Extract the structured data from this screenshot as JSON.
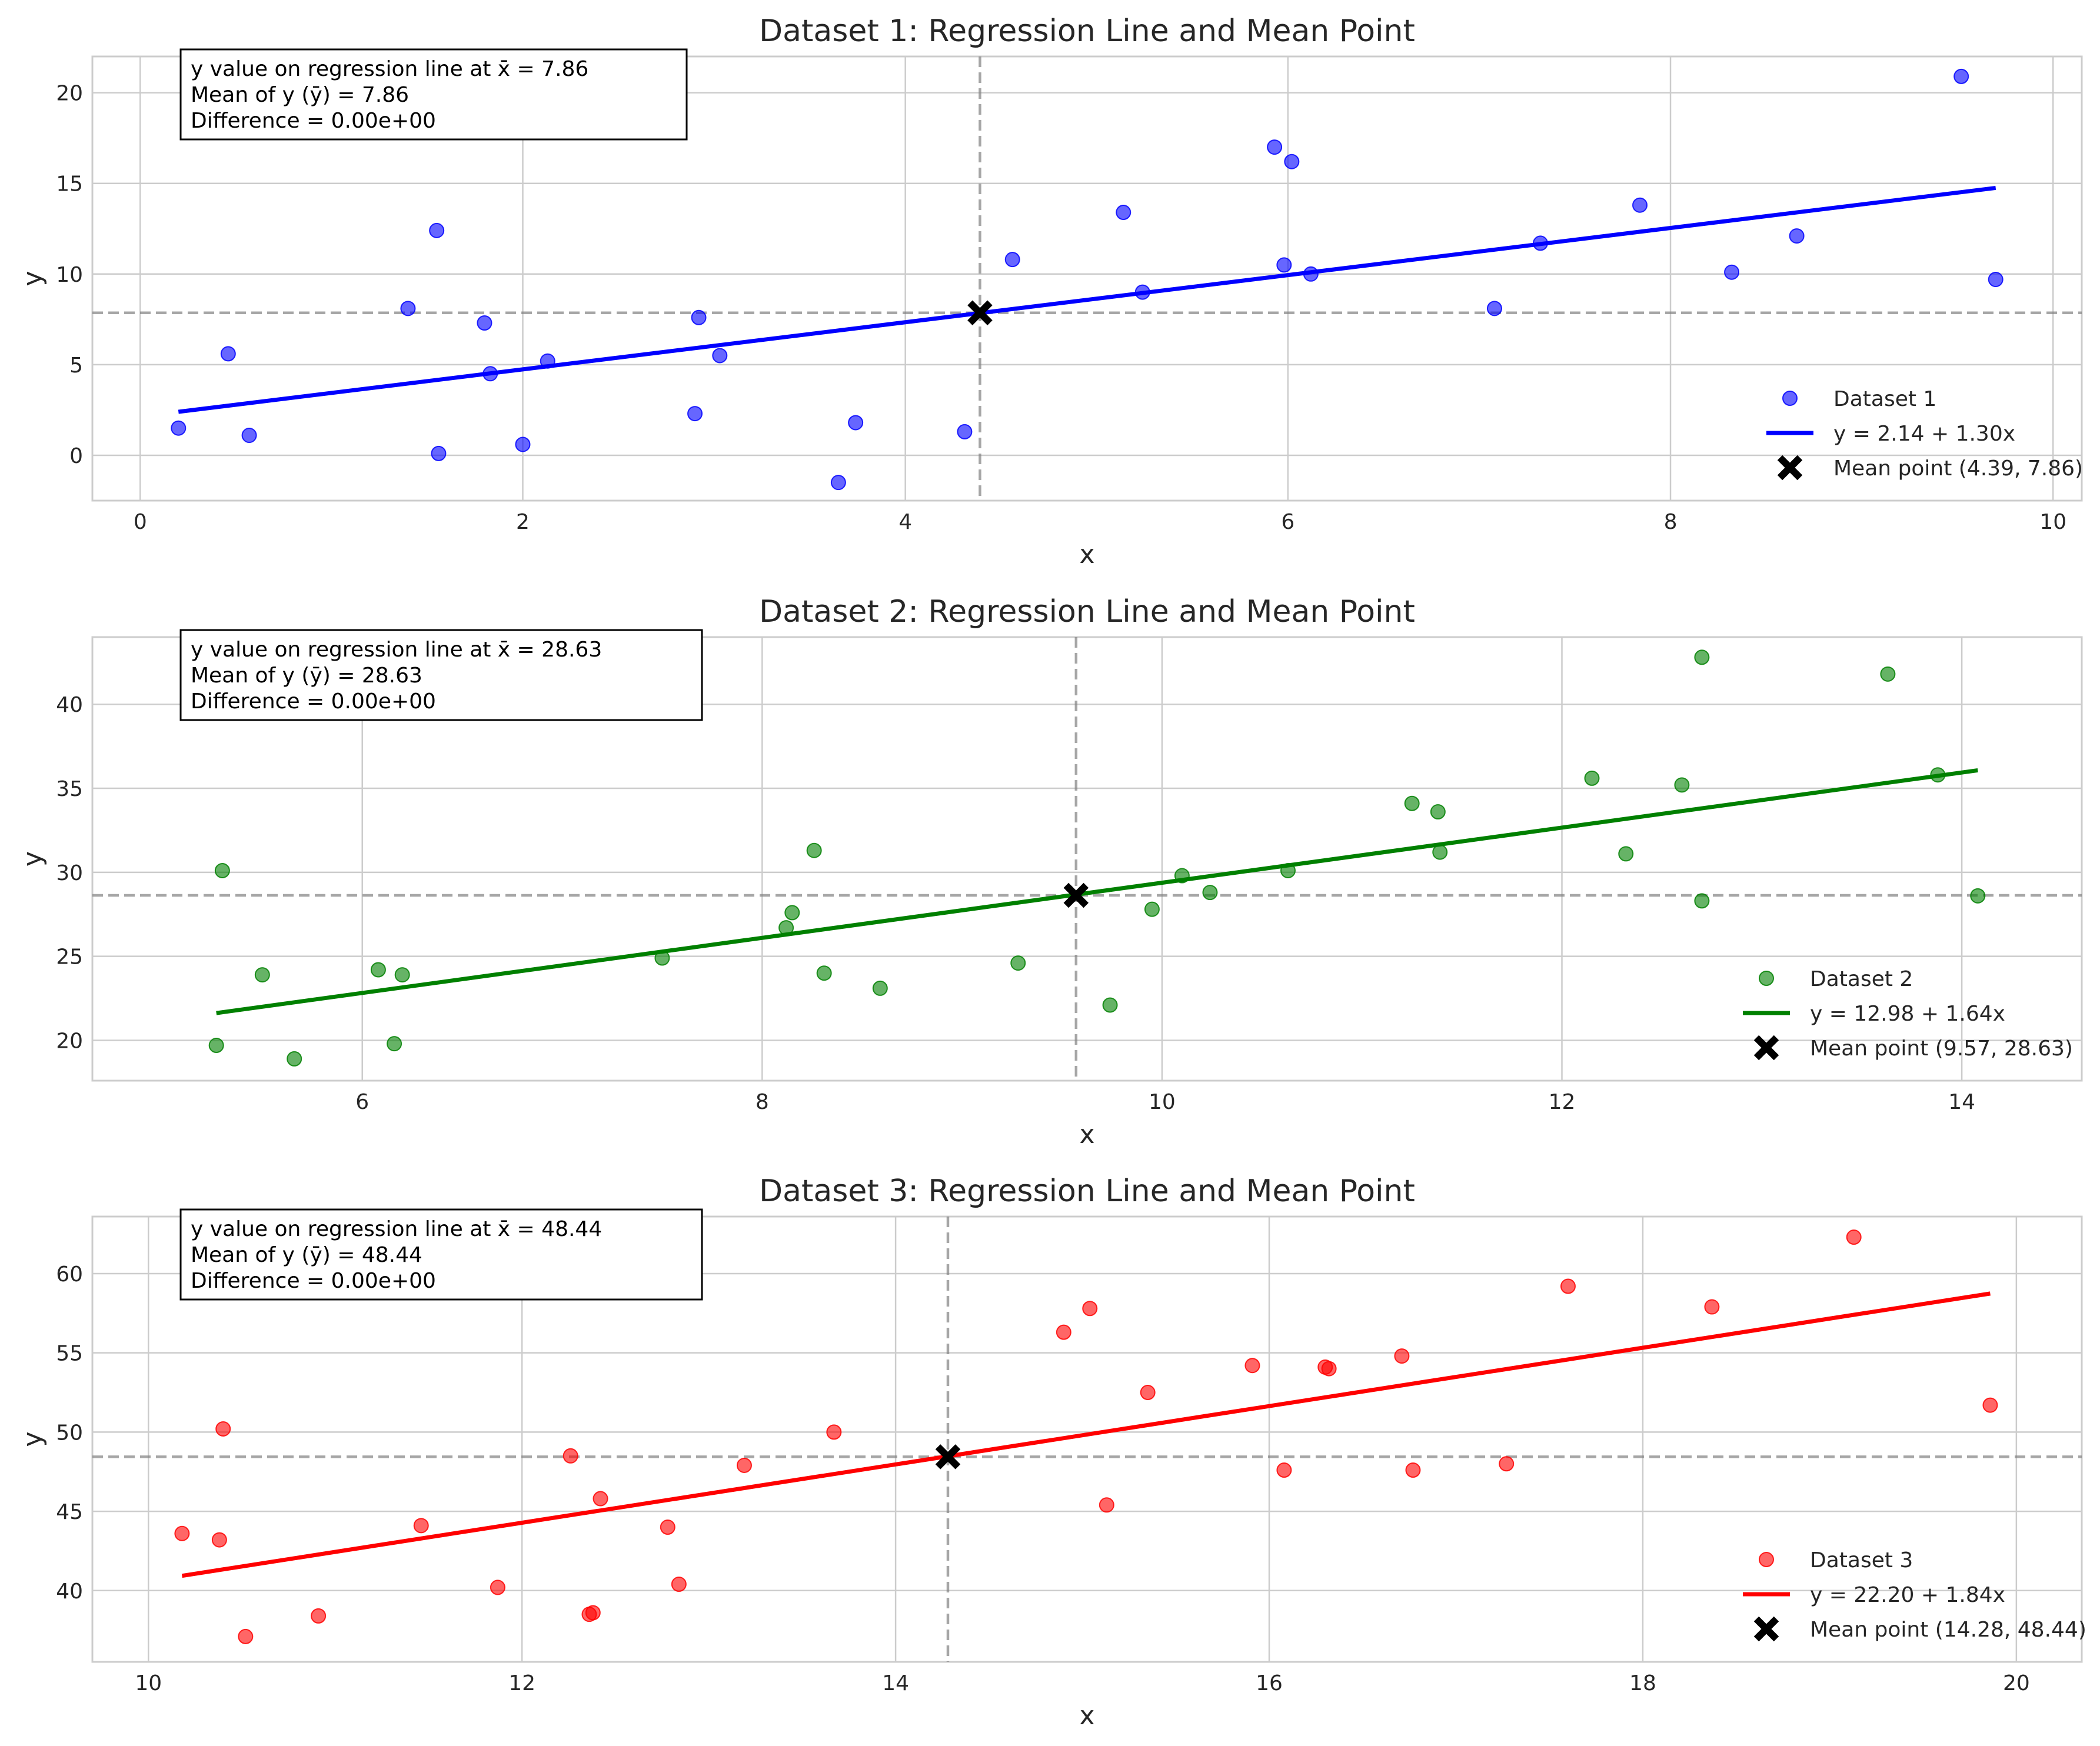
{
  "chart_data": [
    {
      "type": "scatter",
      "title": "Dataset 1: Regression Line and Mean Point",
      "xlabel": "x",
      "ylabel": "y",
      "xlim": [
        -0.25,
        10.15
      ],
      "ylim": [
        -2.5,
        22
      ],
      "xticks": [
        0,
        2,
        4,
        6,
        8,
        10
      ],
      "yticks": [
        0,
        5,
        10,
        15,
        20
      ],
      "grid": true,
      "legend_position": "lower right",
      "color": "#0000ff",
      "points": [
        [
          0.2,
          1.5
        ],
        [
          0.46,
          5.6
        ],
        [
          0.57,
          1.1
        ],
        [
          1.4,
          8.1
        ],
        [
          1.55,
          12.4
        ],
        [
          1.56,
          0.1
        ],
        [
          1.8,
          7.3
        ],
        [
          1.83,
          4.5
        ],
        [
          2.0,
          0.6
        ],
        [
          2.13,
          5.2
        ],
        [
          2.9,
          2.3
        ],
        [
          2.92,
          7.6
        ],
        [
          3.03,
          5.5
        ],
        [
          3.65,
          -1.5
        ],
        [
          3.74,
          1.8
        ],
        [
          4.31,
          1.3
        ],
        [
          4.56,
          10.8
        ],
        [
          5.14,
          13.4
        ],
        [
          5.24,
          9.0
        ],
        [
          5.93,
          17.0
        ],
        [
          5.98,
          10.5
        ],
        [
          6.02,
          16.2
        ],
        [
          6.12,
          10.0
        ],
        [
          7.08,
          8.1
        ],
        [
          7.32,
          11.7
        ],
        [
          7.84,
          13.8
        ],
        [
          8.32,
          10.1
        ],
        [
          8.66,
          12.1
        ],
        [
          9.52,
          20.9
        ],
        [
          9.7,
          9.7
        ]
      ],
      "regression": {
        "intercept": 2.14,
        "slope": 1.3,
        "x_range": [
          0.2,
          9.7
        ]
      },
      "mean_point": [
        4.39,
        7.86
      ],
      "annotation": [
        "y value on regression line at x̄ = 7.86",
        "Mean of y (ȳ) = 7.86",
        "Difference = 0.00e+00"
      ],
      "legend": [
        "Dataset 1",
        "y = 2.14 + 1.30x",
        "Mean point (4.39, 7.86)"
      ]
    },
    {
      "type": "scatter",
      "title": "Dataset 2: Regression Line and Mean Point",
      "xlabel": "x",
      "ylabel": "y",
      "xlim": [
        4.65,
        14.6
      ],
      "ylim": [
        17.6,
        44.0
      ],
      "xticks": [
        6,
        8,
        10,
        12,
        14
      ],
      "yticks": [
        20,
        25,
        30,
        35,
        40
      ],
      "grid": true,
      "legend_position": "lower right",
      "color": "#008000",
      "points": [
        [
          5.27,
          19.7
        ],
        [
          5.3,
          30.1
        ],
        [
          5.5,
          23.9
        ],
        [
          5.66,
          18.9
        ],
        [
          6.08,
          24.2
        ],
        [
          6.16,
          19.8
        ],
        [
          6.2,
          23.9
        ],
        [
          7.5,
          24.9
        ],
        [
          8.12,
          26.7
        ],
        [
          8.15,
          27.6
        ],
        [
          8.26,
          31.3
        ],
        [
          8.31,
          24.0
        ],
        [
          8.59,
          23.1
        ],
        [
          9.28,
          24.6
        ],
        [
          9.74,
          22.1
        ],
        [
          9.95,
          27.8
        ],
        [
          10.1,
          29.8
        ],
        [
          10.24,
          28.8
        ],
        [
          10.63,
          30.1
        ],
        [
          11.25,
          34.1
        ],
        [
          11.38,
          33.6
        ],
        [
          11.39,
          31.2
        ],
        [
          12.15,
          35.6
        ],
        [
          12.32,
          31.1
        ],
        [
          12.6,
          35.2
        ],
        [
          12.7,
          28.3
        ],
        [
          12.7,
          42.8
        ],
        [
          13.63,
          41.8
        ],
        [
          13.88,
          35.8
        ],
        [
          14.08,
          28.6
        ]
      ],
      "regression": {
        "intercept": 12.98,
        "slope": 1.64,
        "x_range": [
          5.27,
          14.08
        ]
      },
      "mean_point": [
        9.57,
        28.63
      ],
      "annotation": [
        "y value on regression line at x̄ = 28.63",
        "Mean of y (ȳ) = 28.63",
        "Difference = 0.00e+00"
      ],
      "legend": [
        "Dataset 2",
        "y = 12.98 + 1.64x",
        "Mean point (9.57, 28.63)"
      ]
    },
    {
      "type": "scatter",
      "title": "Dataset 3: Regression Line and Mean Point",
      "xlabel": "x",
      "ylabel": "y",
      "xlim": [
        9.7,
        20.35
      ],
      "ylim": [
        35.5,
        63.6
      ],
      "xticks": [
        10,
        12,
        14,
        16,
        18,
        20
      ],
      "yticks": [
        40,
        45,
        50,
        55,
        60
      ],
      "grid": true,
      "legend_position": "lower right",
      "color": "#ff0000",
      "points": [
        [
          10.18,
          43.6
        ],
        [
          10.38,
          43.2
        ],
        [
          10.4,
          50.2
        ],
        [
          10.52,
          37.1
        ],
        [
          10.91,
          38.4
        ],
        [
          11.46,
          44.1
        ],
        [
          11.87,
          40.2
        ],
        [
          12.26,
          48.5
        ],
        [
          12.36,
          38.5
        ],
        [
          12.38,
          38.6
        ],
        [
          12.42,
          45.8
        ],
        [
          12.78,
          44.0
        ],
        [
          12.84,
          40.4
        ],
        [
          13.19,
          47.9
        ],
        [
          13.67,
          50.0
        ],
        [
          14.9,
          56.3
        ],
        [
          15.04,
          57.8
        ],
        [
          15.13,
          45.4
        ],
        [
          15.35,
          52.5
        ],
        [
          15.91,
          54.2
        ],
        [
          16.08,
          47.6
        ],
        [
          16.3,
          54.1
        ],
        [
          16.32,
          54.0
        ],
        [
          16.71,
          54.8
        ],
        [
          16.77,
          47.6
        ],
        [
          17.27,
          48.0
        ],
        [
          17.6,
          59.2
        ],
        [
          18.37,
          57.9
        ],
        [
          19.13,
          62.3
        ],
        [
          19.86,
          51.7
        ]
      ],
      "regression": {
        "intercept": 22.2,
        "slope": 1.84,
        "x_range": [
          10.18,
          19.86
        ]
      },
      "mean_point": [
        14.28,
        48.44
      ],
      "annotation": [
        "y value on regression line at x̄ = 48.44",
        "Mean of y (ȳ) = 48.44",
        "Difference = 0.00e+00"
      ],
      "legend": [
        "Dataset 3",
        "y = 22.20 + 1.84x",
        "Mean point (14.28, 48.44)"
      ]
    }
  ]
}
